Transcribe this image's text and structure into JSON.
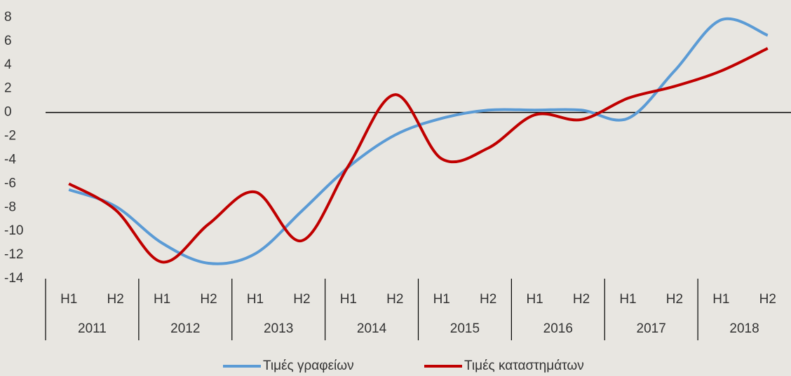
{
  "chart_data": {
    "type": "line",
    "categories": [
      "H1",
      "H2",
      "H1",
      "H2",
      "H1",
      "H2",
      "H1",
      "H2",
      "H1",
      "H2",
      "H1",
      "H2",
      "H1",
      "H2",
      "H1",
      "H2"
    ],
    "groups": [
      "2011",
      "2012",
      "2013",
      "2014",
      "2015",
      "2016",
      "2017",
      "2018"
    ],
    "series": [
      {
        "name": "Τιμές γραφείων",
        "color": "#5b9bd5",
        "values": [
          -6.5,
          -7.9,
          -11,
          -12.7,
          -11.9,
          -8.3,
          -4.6,
          -1.9,
          -0.5,
          0.2,
          0.2,
          0.2,
          -0.5,
          3.5,
          7.8,
          6.5
        ]
      },
      {
        "name": "Τιμές καταστημάτων",
        "color": "#c00000",
        "values": [
          -6,
          -8.2,
          -12.6,
          -9.4,
          -6.7,
          -10.8,
          -4.5,
          1.5,
          -3.9,
          -3,
          -0.2,
          -0.6,
          1.2,
          2.2,
          3.5,
          5.4
        ]
      }
    ],
    "ylim": [
      -14,
      8
    ],
    "yticks": [
      -14,
      -12,
      -10,
      -8,
      -6,
      -4,
      -2,
      0,
      2,
      4,
      6,
      8
    ],
    "legend": "bottom"
  }
}
